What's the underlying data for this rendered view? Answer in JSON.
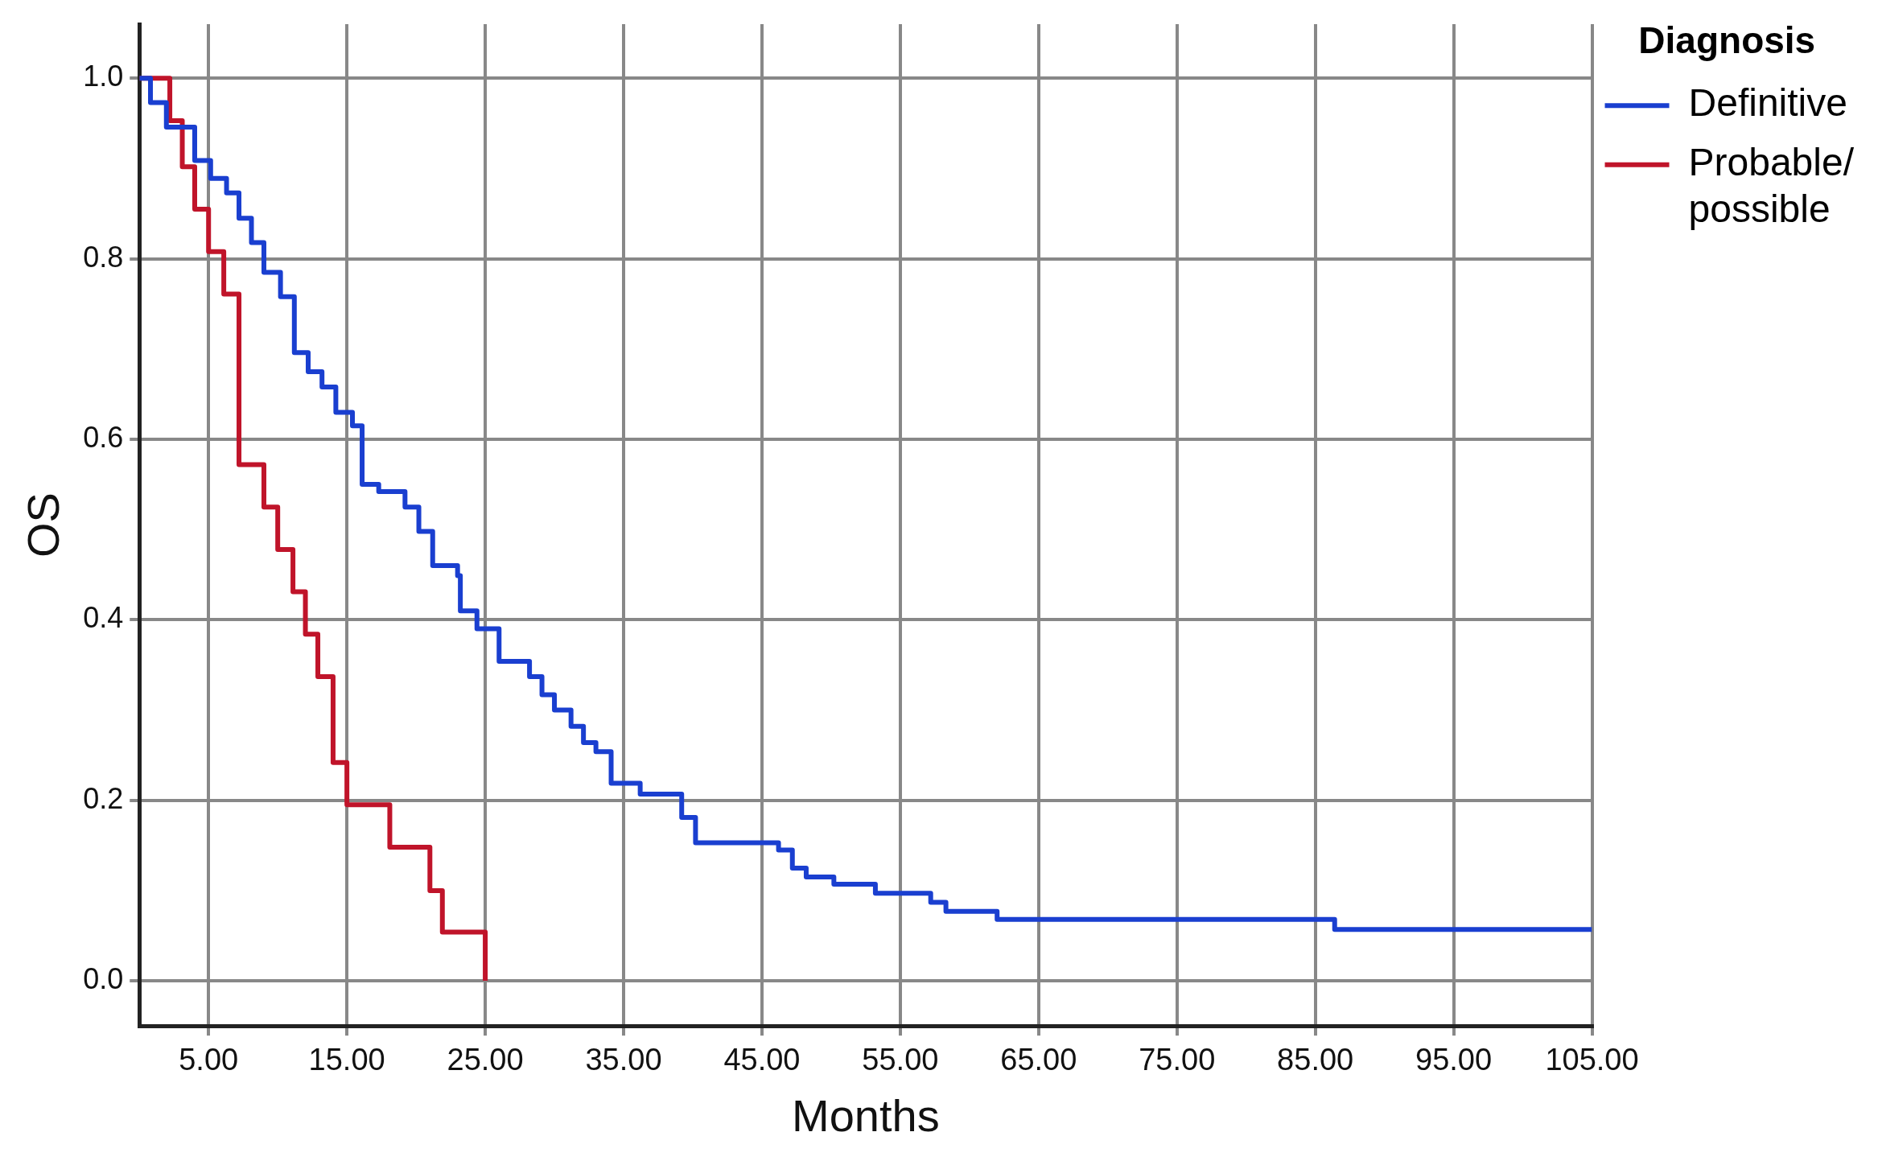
{
  "chart_data": {
    "type": "step",
    "xlabel": "Months",
    "ylabel": "OS",
    "legend_title": "Diagnosis",
    "legend": "top right",
    "grid": true,
    "xlim": [
      0,
      105
    ],
    "ylim": [
      -0.05,
      1.06
    ],
    "xticks": [
      {
        "value": 5,
        "label": "5.00"
      },
      {
        "value": 15,
        "label": "15.00"
      },
      {
        "value": 25,
        "label": "25.00"
      },
      {
        "value": 35,
        "label": "35.00"
      },
      {
        "value": 45,
        "label": "45.00"
      },
      {
        "value": 55,
        "label": "55.00"
      },
      {
        "value": 65,
        "label": "65.00"
      },
      {
        "value": 75,
        "label": "75.00"
      },
      {
        "value": 85,
        "label": "85.00"
      },
      {
        "value": 95,
        "label": "95.00"
      },
      {
        "value": 105,
        "label": "105.00"
      }
    ],
    "yticks": [
      {
        "value": 0,
        "label": "0.0"
      },
      {
        "value": 0.2,
        "label": "0.2"
      },
      {
        "value": 0.4,
        "label": "0.4"
      },
      {
        "value": 0.6,
        "label": "0.6"
      },
      {
        "value": 0.8,
        "label": "0.8"
      },
      {
        "value": 1,
        "label": "1.0"
      }
    ],
    "series": [
      {
        "name": "Definitive",
        "color": "#1a3fd0",
        "x": [
          0,
          0.8,
          1.95,
          4.0,
          5.15,
          6.3,
          7.2,
          8.1,
          9.0,
          10.2,
          11.2,
          12.2,
          13.2,
          14.2,
          15.4,
          16.1,
          17.3,
          19.2,
          20.2,
          21.2,
          23.0,
          23.2,
          24.4,
          26.0,
          28.2,
          29.1,
          30.0,
          31.2,
          32.1,
          33.0,
          34.1,
          36.2,
          39.2,
          40.2,
          46.2,
          47.2,
          48.2,
          50.2,
          53.2,
          57.2,
          58.3,
          62.0,
          86.4,
          105
        ],
        "values": [
          1.0,
          0.973,
          0.946,
          0.909,
          0.889,
          0.873,
          0.845,
          0.818,
          0.785,
          0.758,
          0.696,
          0.675,
          0.658,
          0.63,
          0.615,
          0.55,
          0.542,
          0.525,
          0.498,
          0.46,
          0.449,
          0.41,
          0.39,
          0.354,
          0.337,
          0.317,
          0.3,
          0.282,
          0.264,
          0.254,
          0.219,
          0.207,
          0.181,
          0.153,
          0.145,
          0.125,
          0.115,
          0.107,
          0.097,
          0.087,
          0.077,
          0.068,
          0.057,
          0.057
        ]
      },
      {
        "name": "Probable/ possible",
        "color": "#c0142a",
        "x": [
          0,
          2.2,
          3.1,
          4.0,
          5.0,
          6.1,
          7.2,
          9.0,
          10.0,
          11.1,
          12.0,
          12.9,
          14.0,
          15.0,
          18.1,
          21.0,
          21.9,
          25.0
        ],
        "values": [
          1.0,
          0.953,
          0.902,
          0.855,
          0.808,
          0.761,
          0.572,
          0.525,
          0.478,
          0.431,
          0.384,
          0.337,
          0.242,
          0.195,
          0.148,
          0.1,
          0.054,
          0
        ]
      }
    ]
  }
}
